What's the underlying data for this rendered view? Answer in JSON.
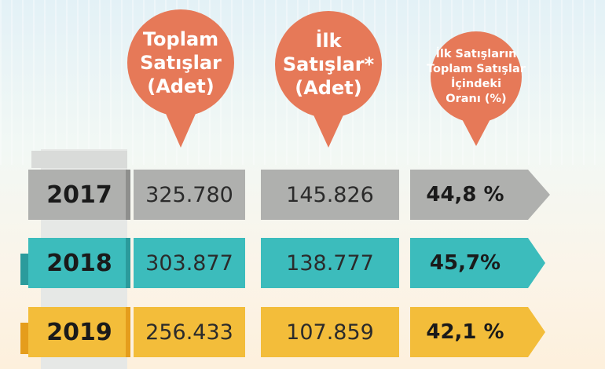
{
  "colors": {
    "bubble": "#e67958",
    "gray": "#afb0ae",
    "gray_dark": "#8e8f8d",
    "teal": "#3cbcbc",
    "teal_dark": "#2b9b9c",
    "yellow": "#f3bd3a",
    "yellow_dark": "#e59d1c"
  },
  "headers": {
    "total_sales": [
      "Toplam",
      "Satışlar",
      "(Adet)"
    ],
    "first_sales": [
      "İlk",
      "Satışlar*",
      "(Adet)"
    ],
    "ratio": [
      "İlk Satışların",
      "Toplam Satışlar",
      "İçindeki",
      "Oranı (%)"
    ]
  },
  "rows": [
    {
      "year": "2017",
      "total": "325.780",
      "first": "145.826",
      "ratio": "44,8 %",
      "theme": "gray"
    },
    {
      "year": "2018",
      "total": "303.877",
      "first": "138.777",
      "ratio": "45,7%",
      "theme": "teal"
    },
    {
      "year": "2019",
      "total": "256.433",
      "first": "107.859",
      "ratio": "42,1 %",
      "theme": "yellow"
    }
  ]
}
